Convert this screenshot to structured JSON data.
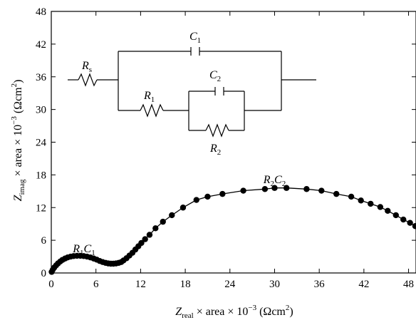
{
  "chart_data": {
    "type": "scatter",
    "title": "",
    "xlabel": {
      "main": "Z",
      "sub": "real",
      "rest": " × area × 10",
      "sup": "−3",
      "unit_open": " (Ωcm",
      "unit_sup": "2",
      "unit_close": ")"
    },
    "ylabel": {
      "main": "Z",
      "sub": "imag",
      "rest": " × area × 10",
      "sup": "−3",
      "unit_open": " (Ωcm",
      "unit_sup": "2",
      "unit_close": ")"
    },
    "xlim": [
      0,
      49
    ],
    "ylim": [
      0,
      48
    ],
    "xticks": [
      0,
      6,
      12,
      18,
      24,
      30,
      36,
      42,
      48
    ],
    "yticks": [
      0,
      6,
      12,
      18,
      24,
      30,
      36,
      42,
      48
    ],
    "xtick_labels": [
      "0",
      "6",
      "12",
      "18",
      "24",
      "30",
      "36",
      "42",
      "48"
    ],
    "ytick_labels": [
      "0",
      "6",
      "12",
      "18",
      "24",
      "30",
      "36",
      "42",
      "48"
    ],
    "grid": false,
    "series": [
      {
        "color": "#000000",
        "x": [
          0.05,
          0.2,
          0.4,
          0.65,
          0.9,
          1.2,
          1.5,
          1.85,
          2.2,
          2.6,
          3.0,
          3.45,
          3.9,
          4.35,
          4.8,
          5.25,
          5.7,
          6.1,
          6.5,
          6.9,
          7.3,
          7.65,
          8.0,
          8.35,
          8.7,
          9.05,
          9.4,
          9.7,
          10.1,
          10.5,
          10.9,
          11.3,
          11.7,
          12.1,
          12.6,
          13.2,
          14.0,
          15.0,
          16.2,
          17.7,
          19.5,
          21.0,
          23.0,
          25.8,
          28.7,
          30.0,
          31.6,
          34.3,
          36.3,
          38.3,
          40.3,
          41.6,
          42.9,
          44.2,
          45.2,
          46.3,
          47.3,
          48.2,
          48.9
        ],
        "y": [
          0.2,
          0.6,
          1.0,
          1.4,
          1.75,
          2.1,
          2.4,
          2.65,
          2.85,
          3.0,
          3.1,
          3.15,
          3.15,
          3.1,
          3.0,
          2.85,
          2.65,
          2.45,
          2.2,
          2.0,
          1.85,
          1.75,
          1.7,
          1.7,
          1.75,
          1.85,
          2.0,
          2.3,
          2.7,
          3.2,
          3.7,
          4.3,
          4.9,
          5.5,
          6.2,
          7.0,
          8.2,
          9.4,
          10.6,
          12.0,
          13.4,
          14.0,
          14.5,
          15.1,
          15.4,
          15.6,
          15.6,
          15.4,
          15.1,
          14.5,
          14.0,
          13.3,
          12.7,
          12.1,
          11.4,
          10.6,
          9.8,
          9.2,
          8.6
        ]
      }
    ],
    "annotations": [
      {
        "main": "R",
        "sub": "1",
        "main2": "C",
        "sub2": "1",
        "x": 4.4,
        "y": 3.8
      },
      {
        "main": "R",
        "sub": "2",
        "main2": "C",
        "sub2": "2",
        "x": 30.0,
        "y": 16.5
      }
    ],
    "circuit_labels": {
      "Rs": {
        "main": "R",
        "sub": "s"
      },
      "R1": {
        "main": "R",
        "sub": "1"
      },
      "C1": {
        "main": "C",
        "sub": "1"
      },
      "C2": {
        "main": "C",
        "sub": "2"
      },
      "R2": {
        "main": "R",
        "sub": "2"
      }
    }
  }
}
